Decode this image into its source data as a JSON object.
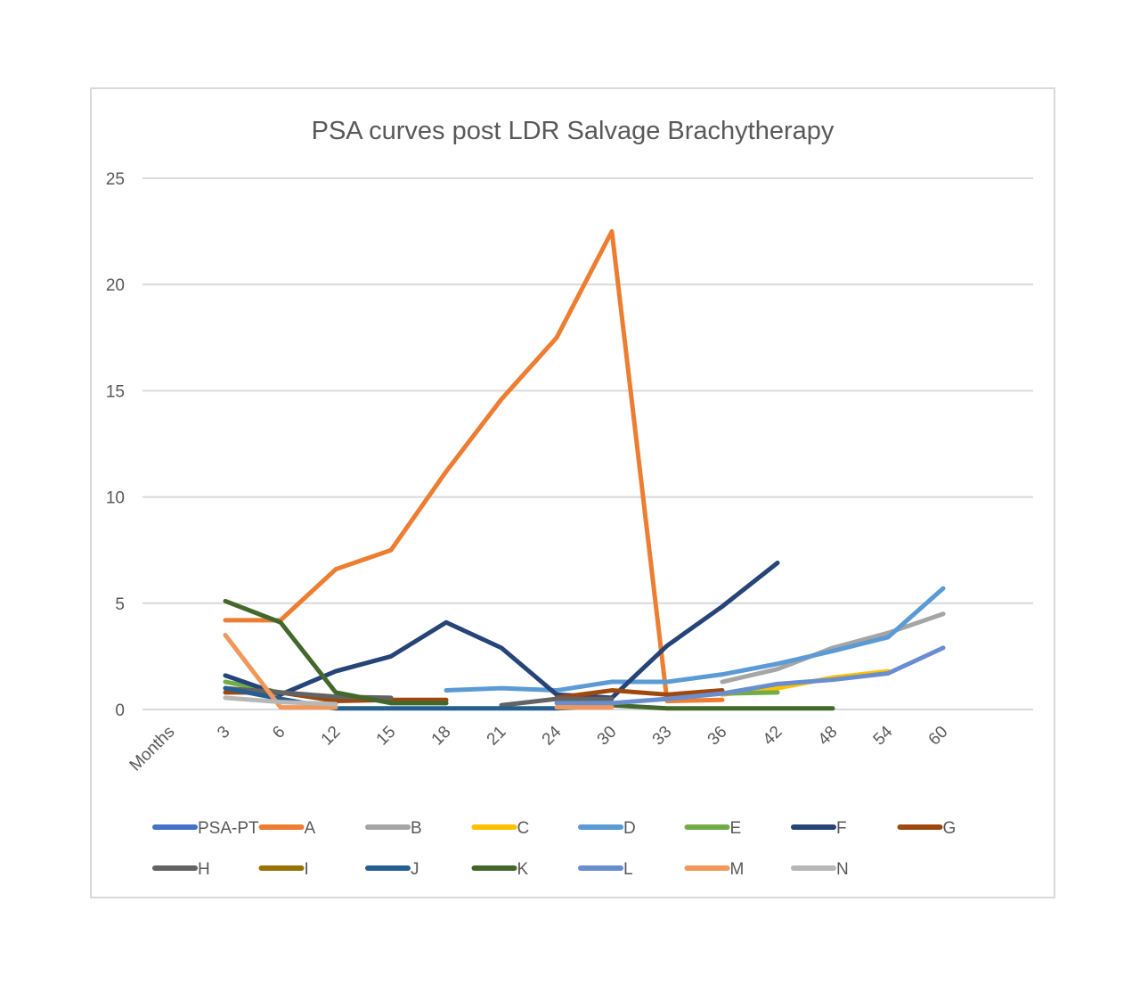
{
  "chart_data": {
    "type": "line",
    "title": "PSA curves post LDR Salvage Brachytherapy",
    "xlabel": "",
    "ylabel": "",
    "categories": [
      "Months",
      "3",
      "6",
      "12",
      "15",
      "18",
      "21",
      "24",
      "30",
      "33",
      "36",
      "42",
      "48",
      "54",
      "60"
    ],
    "ylim": [
      0,
      25
    ],
    "yticks": [
      0,
      5,
      10,
      15,
      20,
      25
    ],
    "grid": true,
    "legend_position": "bottom",
    "series": [
      {
        "name": "PSA-PT",
        "color": "#4472c4",
        "values": [
          null,
          1.0,
          0.5,
          null,
          null,
          null,
          null,
          null,
          null,
          null,
          null,
          null,
          null,
          null,
          null
        ]
      },
      {
        "name": "A",
        "color": "#ed7d31",
        "values": [
          null,
          4.2,
          4.2,
          6.6,
          7.5,
          11.2,
          14.6,
          17.5,
          22.5,
          0.4,
          0.45,
          null,
          null,
          null,
          null
        ]
      },
      {
        "name": "B",
        "color": "#a5a5a5",
        "values": [
          null,
          null,
          null,
          null,
          null,
          null,
          null,
          null,
          null,
          null,
          1.3,
          1.9,
          2.9,
          3.6,
          4.5
        ]
      },
      {
        "name": "C",
        "color": "#ffc000",
        "values": [
          null,
          null,
          null,
          null,
          null,
          null,
          null,
          null,
          null,
          null,
          0.7,
          1.0,
          1.5,
          1.8,
          null
        ]
      },
      {
        "name": "D",
        "color": "#5b9bd5",
        "values": [
          null,
          null,
          null,
          null,
          null,
          0.9,
          1.0,
          0.9,
          1.3,
          1.3,
          1.65,
          2.15,
          2.75,
          3.4,
          5.7
        ]
      },
      {
        "name": "E",
        "color": "#70ad47",
        "values": [
          null,
          1.3,
          0.8,
          0.6,
          0.4,
          0.3,
          null,
          null,
          null,
          null,
          0.75,
          0.8,
          null,
          null,
          null
        ]
      },
      {
        "name": "F",
        "color": "#264478",
        "values": [
          null,
          1.6,
          0.7,
          1.8,
          2.5,
          4.1,
          2.9,
          0.7,
          0.55,
          3.0,
          4.85,
          6.9,
          null,
          null,
          null
        ]
      },
      {
        "name": "G",
        "color": "#9e480e",
        "values": [
          null,
          0.8,
          0.8,
          0.4,
          0.45,
          0.45,
          null,
          0.55,
          0.9,
          0.7,
          0.9,
          null,
          null,
          null,
          null
        ]
      },
      {
        "name": "H",
        "color": "#636363",
        "values": [
          null,
          1.0,
          0.8,
          0.6,
          0.55,
          null,
          0.2,
          0.5,
          0.5,
          null,
          null,
          null,
          null,
          null,
          null
        ]
      },
      {
        "name": "I",
        "color": "#997300",
        "values": [
          null,
          null,
          null,
          null,
          null,
          null,
          null,
          null,
          null,
          null,
          null,
          null,
          null,
          null,
          null
        ]
      },
      {
        "name": "J",
        "color": "#255e91",
        "values": [
          null,
          1.0,
          0.5,
          0.05,
          0.05,
          0.05,
          0.05,
          0.05,
          0.2,
          null,
          null,
          null,
          null,
          null,
          null
        ]
      },
      {
        "name": "K",
        "color": "#43682b",
        "values": [
          null,
          5.1,
          4.1,
          0.8,
          0.3,
          0.3,
          null,
          null,
          0.2,
          0.05,
          0.05,
          0.05,
          0.05,
          null,
          null
        ]
      },
      {
        "name": "L",
        "color": "#698ed0",
        "values": [
          null,
          null,
          null,
          null,
          null,
          null,
          null,
          0.3,
          0.3,
          0.5,
          0.75,
          1.2,
          1.4,
          1.7,
          2.9
        ]
      },
      {
        "name": "M",
        "color": "#f1975a",
        "values": [
          null,
          3.5,
          0.1,
          0.1,
          null,
          null,
          null,
          0.1,
          0.1,
          null,
          null,
          null,
          null,
          null,
          null
        ]
      },
      {
        "name": "N",
        "color": "#b7b7b7",
        "values": [
          null,
          0.55,
          0.35,
          0.25,
          null,
          null,
          null,
          null,
          null,
          null,
          null,
          null,
          null,
          null,
          null
        ]
      }
    ]
  }
}
